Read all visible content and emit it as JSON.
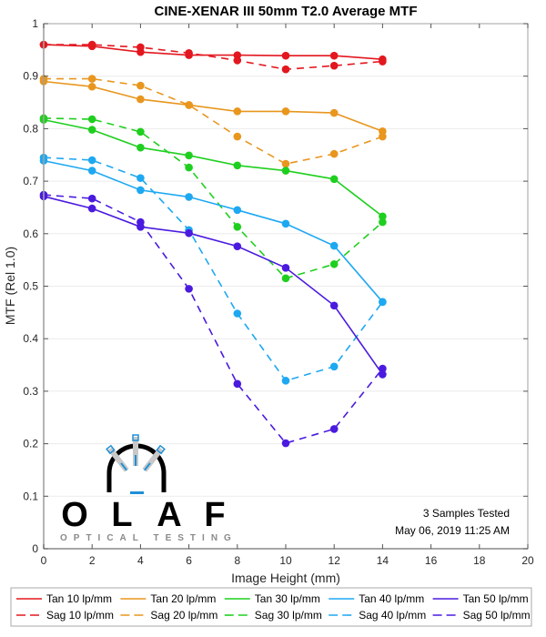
{
  "chart_data": {
    "type": "line",
    "title": "CINE-XENAR III 50mm T2.0 Average MTF",
    "xlabel": "Image Height (mm)",
    "ylabel": "MTF (Rel 1.0)",
    "xlim": [
      0,
      20
    ],
    "ylim": [
      0,
      1
    ],
    "xticks": [
      0,
      2,
      4,
      6,
      8,
      10,
      12,
      14,
      16,
      18,
      20
    ],
    "yticks": [
      0,
      0.1,
      0.2,
      0.3,
      0.4,
      0.5,
      0.6,
      0.7,
      0.8,
      0.9,
      1
    ],
    "ytick_labels": [
      "0",
      "0.1",
      "0.2",
      "0.3",
      "0.4",
      "0.5",
      "0.6",
      "0.7",
      "0.8",
      "0.9",
      "1"
    ],
    "grid": "horizontal",
    "legend_position": "bottom",
    "x": [
      0,
      2,
      4,
      6,
      8,
      10,
      12,
      14
    ],
    "series": [
      {
        "name": "Tan 10 lp/mm",
        "color": "#e3171f",
        "style": "solid",
        "values": [
          0.96,
          0.957,
          0.946,
          0.94,
          0.94,
          0.939,
          0.939,
          0.932
        ]
      },
      {
        "name": "Sag 10 lp/mm",
        "color": "#e3171f",
        "style": "dashed",
        "values": [
          0.96,
          0.96,
          0.955,
          0.944,
          0.93,
          0.913,
          0.92,
          0.928
        ]
      },
      {
        "name": "Tan 20 lp/mm",
        "color": "#e8961e",
        "style": "solid",
        "values": [
          0.89,
          0.88,
          0.856,
          0.845,
          0.833,
          0.833,
          0.83,
          0.795
        ]
      },
      {
        "name": "Sag 20 lp/mm",
        "color": "#e8961e",
        "style": "dashed",
        "values": [
          0.895,
          0.895,
          0.882,
          0.845,
          0.785,
          0.733,
          0.752,
          0.785
        ]
      },
      {
        "name": "Tan 30 lp/mm",
        "color": "#1fcf1f",
        "style": "solid",
        "values": [
          0.817,
          0.798,
          0.764,
          0.749,
          0.73,
          0.72,
          0.704,
          0.633
        ]
      },
      {
        "name": "Sag 30 lp/mm",
        "color": "#1fcf1f",
        "style": "dashed",
        "values": [
          0.82,
          0.818,
          0.794,
          0.726,
          0.613,
          0.515,
          0.542,
          0.622
        ]
      },
      {
        "name": "Tan 40 lp/mm",
        "color": "#1ea8f2",
        "style": "solid",
        "values": [
          0.739,
          0.72,
          0.683,
          0.67,
          0.645,
          0.619,
          0.577,
          0.47
        ]
      },
      {
        "name": "Sag 40 lp/mm",
        "color": "#1ea8f2",
        "style": "dashed",
        "values": [
          0.745,
          0.74,
          0.706,
          0.607,
          0.448,
          0.32,
          0.347,
          0.47
        ]
      },
      {
        "name": "Tan 50 lp/mm",
        "color": "#4a1adf",
        "style": "solid",
        "values": [
          0.671,
          0.648,
          0.613,
          0.601,
          0.576,
          0.535,
          0.463,
          0.332
        ]
      },
      {
        "name": "Sag 50 lp/mm",
        "color": "#4a1adf",
        "style": "dashed",
        "values": [
          0.674,
          0.667,
          0.622,
          0.495,
          0.314,
          0.201,
          0.228,
          0.343
        ]
      }
    ],
    "legend_order": [
      "Tan 10 lp/mm",
      "Tan 20 lp/mm",
      "Tan 30 lp/mm",
      "Tan 40 lp/mm",
      "Tan 50 lp/mm",
      "Sag 10 lp/mm",
      "Sag 20 lp/mm",
      "Sag 30 lp/mm",
      "Sag 40 lp/mm",
      "Sag 50 lp/mm"
    ],
    "annotations": [
      "3 Samples Tested",
      "May 06, 2019 11:25 AM"
    ]
  },
  "logo": {
    "letters": [
      "O",
      "L",
      "A",
      "F"
    ],
    "subtitle": "OPTICAL TESTING",
    "accent_color": "#1e90d6"
  }
}
